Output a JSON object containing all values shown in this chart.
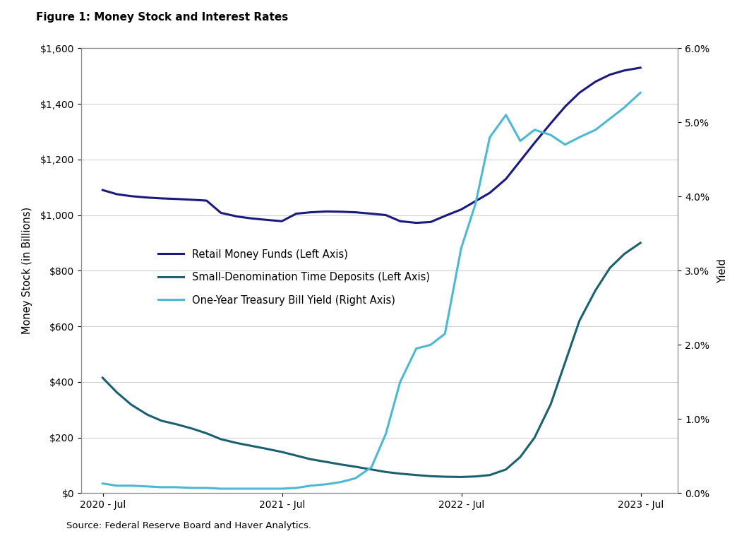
{
  "title": "Figure 1: Money Stock and Interest Rates",
  "source": "Source: Federal Reserve Board and Haver Analytics.",
  "xlabel_ticks": [
    "2020 - Jul",
    "2021 - Jul",
    "2022 - Jul",
    "2023 - Jul"
  ],
  "ylabel_left": "Money Stock (in Billions)",
  "ylabel_right": "Yield",
  "ylim_left": [
    0,
    1600
  ],
  "ylim_right": [
    0.0,
    0.06
  ],
  "yticks_left": [
    0,
    200,
    400,
    600,
    800,
    1000,
    1200,
    1400,
    1600
  ],
  "yticks_right": [
    0.0,
    0.01,
    0.02,
    0.03,
    0.04,
    0.05,
    0.06
  ],
  "background_color": "#ffffff",
  "grid_color": "#d0d0d0",
  "retail_money_funds": {
    "label": "Retail Money Funds (Left Axis)",
    "color": "#1a1a7e",
    "linewidth": 2.2,
    "x": [
      2020.54,
      2020.62,
      2020.7,
      2020.79,
      2020.87,
      2020.95,
      2021.04,
      2021.12,
      2021.2,
      2021.29,
      2021.37,
      2021.45,
      2021.54,
      2021.62,
      2021.7,
      2021.79,
      2021.87,
      2021.95,
      2022.04,
      2022.12,
      2022.2,
      2022.29,
      2022.37,
      2022.45,
      2022.54,
      2022.62,
      2022.7,
      2022.79,
      2022.87,
      2022.95,
      2023.04,
      2023.12,
      2023.2,
      2023.29,
      2023.37,
      2023.45,
      2023.54
    ],
    "y": [
      1090,
      1075,
      1068,
      1063,
      1060,
      1058,
      1055,
      1052,
      1008,
      995,
      988,
      983,
      978,
      1005,
      1010,
      1013,
      1012,
      1010,
      1005,
      1000,
      978,
      972,
      975,
      997,
      1020,
      1050,
      1080,
      1130,
      1195,
      1260,
      1330,
      1390,
      1440,
      1480,
      1505,
      1520,
      1530
    ]
  },
  "small_time_deposits": {
    "label": "Small-Denomination Time Deposits (Left Axis)",
    "color": "#1a6070",
    "linewidth": 2.2,
    "x": [
      2020.54,
      2020.62,
      2020.7,
      2020.79,
      2020.87,
      2020.95,
      2021.04,
      2021.12,
      2021.2,
      2021.29,
      2021.37,
      2021.45,
      2021.54,
      2021.62,
      2021.7,
      2021.79,
      2021.87,
      2021.95,
      2022.04,
      2022.12,
      2022.2,
      2022.29,
      2022.37,
      2022.45,
      2022.54,
      2022.62,
      2022.7,
      2022.79,
      2022.87,
      2022.95,
      2023.04,
      2023.12,
      2023.2,
      2023.29,
      2023.37,
      2023.45,
      2023.54
    ],
    "y": [
      415,
      362,
      318,
      282,
      260,
      248,
      232,
      215,
      194,
      180,
      170,
      160,
      148,
      135,
      122,
      112,
      103,
      95,
      85,
      76,
      70,
      65,
      61,
      59,
      58,
      60,
      65,
      85,
      130,
      200,
      320,
      470,
      620,
      730,
      810,
      860,
      900
    ]
  },
  "treasury_yield": {
    "label": "One-Year Treasury Bill Yield (Right Axis)",
    "color": "#4db8d4",
    "linewidth": 2.2,
    "x": [
      2020.54,
      2020.62,
      2020.7,
      2020.79,
      2020.87,
      2020.95,
      2021.04,
      2021.12,
      2021.2,
      2021.29,
      2021.37,
      2021.45,
      2021.54,
      2021.62,
      2021.7,
      2021.79,
      2021.87,
      2021.95,
      2022.04,
      2022.12,
      2022.2,
      2022.29,
      2022.37,
      2022.45,
      2022.54,
      2022.62,
      2022.7,
      2022.79,
      2022.87,
      2022.95,
      2023.04,
      2023.12,
      2023.2,
      2023.29,
      2023.37,
      2023.45,
      2023.54
    ],
    "y": [
      0.0013,
      0.001,
      0.001,
      0.0009,
      0.0008,
      0.0008,
      0.0007,
      0.0007,
      0.0006,
      0.0006,
      0.0006,
      0.0006,
      0.0006,
      0.0007,
      0.001,
      0.0012,
      0.0015,
      0.002,
      0.0035,
      0.008,
      0.015,
      0.0195,
      0.02,
      0.0215,
      0.033,
      0.039,
      0.048,
      0.051,
      0.0475,
      0.049,
      0.0483,
      0.047,
      0.048,
      0.049,
      0.0505,
      0.052,
      0.054
    ]
  },
  "legend_entries": [
    {
      "label": "Retail Money Funds (Left Axis)",
      "color": "#1a1a7e"
    },
    {
      "label": "Small-Denomination Time Deposits (Left Axis)",
      "color": "#1a6070"
    },
    {
      "label": "One-Year Treasury Bill Yield (Right Axis)",
      "color": "#4db8d4"
    }
  ]
}
